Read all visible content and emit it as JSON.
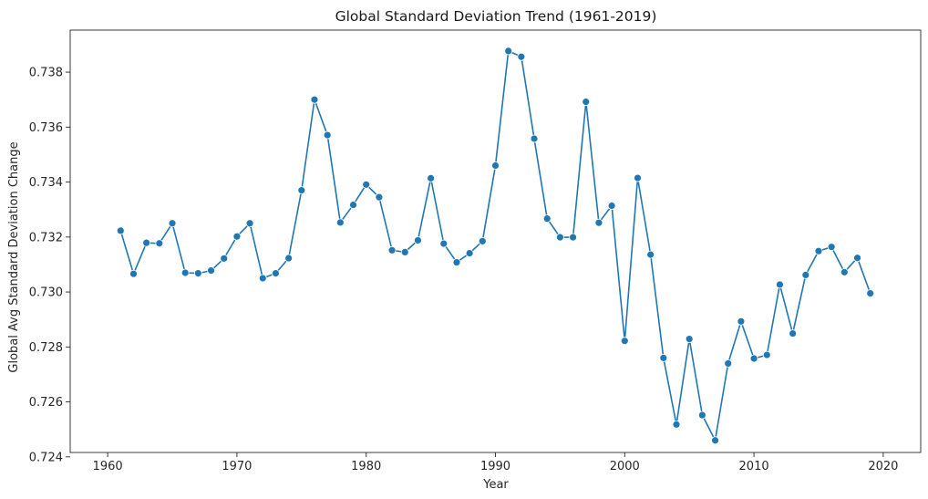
{
  "chart_data": {
    "type": "line",
    "title": "Global Standard Deviation Trend (1961-2019)",
    "xlabel": "Year",
    "ylabel": "Global Avg Standard Deviation Change",
    "xlim": [
      1957.1,
      2022.9
    ],
    "ylim": [
      0.72416,
      0.73953
    ],
    "x_ticks": [
      1960,
      1970,
      1980,
      1990,
      2000,
      2010,
      2020
    ],
    "y_ticks": [
      0.724,
      0.726,
      0.728,
      0.73,
      0.732,
      0.734,
      0.736,
      0.738
    ],
    "y_tick_labels": [
      "0.724",
      "0.726",
      "0.728",
      "0.730",
      "0.732",
      "0.734",
      "0.736",
      "0.738"
    ],
    "grid": false,
    "line_color": "#1f77b4",
    "marker": "circle",
    "series": [
      {
        "x": [
          1961,
          1962,
          1963,
          1964,
          1965,
          1966,
          1967,
          1968,
          1969,
          1970,
          1971,
          1972,
          1973,
          1974,
          1975,
          1976,
          1977,
          1978,
          1979,
          1980,
          1981,
          1982,
          1983,
          1984,
          1985,
          1986,
          1987,
          1988,
          1989,
          1990,
          1991,
          1992,
          1993,
          1994,
          1995,
          1996,
          1997,
          1998,
          1999,
          2000,
          2001,
          2002,
          2003,
          2004,
          2005,
          2006,
          2007,
          2008,
          2009,
          2010,
          2011,
          2012,
          2013,
          2014,
          2015,
          2016,
          2017,
          2018,
          2019
        ],
        "y": [
          0.73223,
          0.73066,
          0.73179,
          0.73177,
          0.7325,
          0.7307,
          0.73068,
          0.73078,
          0.73122,
          0.73202,
          0.7325,
          0.7305,
          0.73068,
          0.73123,
          0.7337,
          0.737,
          0.73571,
          0.73253,
          0.73317,
          0.73391,
          0.73345,
          0.73152,
          0.73145,
          0.73188,
          0.73414,
          0.73176,
          0.73108,
          0.73141,
          0.73185,
          0.7346,
          0.73877,
          0.73856,
          0.73558,
          0.73267,
          0.73199,
          0.73199,
          0.73692,
          0.73252,
          0.73314,
          0.72822,
          0.73415,
          0.73136,
          0.7276,
          0.72518,
          0.72829,
          0.72552,
          0.7246,
          0.7274,
          0.72893,
          0.72758,
          0.72771,
          0.73027,
          0.72849,
          0.73062,
          0.73149,
          0.73164,
          0.73072,
          0.73124,
          0.72995
        ]
      }
    ]
  }
}
